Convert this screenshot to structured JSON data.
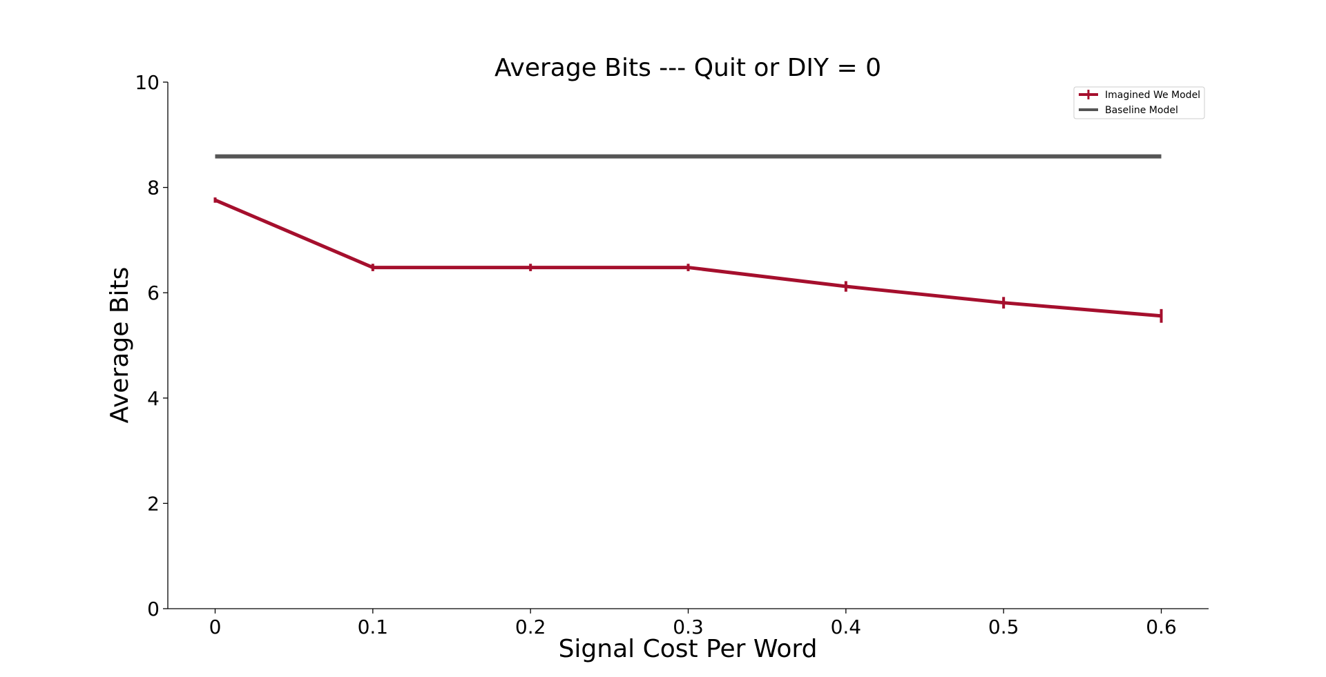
{
  "chart_data": {
    "type": "line",
    "title": "Average Bits --- Quit or DIY = 0",
    "xlabel": "Signal Cost Per Word",
    "ylabel": "Average Bits",
    "x": [
      0,
      0.1,
      0.2,
      0.3,
      0.4,
      0.5,
      0.6
    ],
    "x_tick_labels": [
      "0",
      "0.1",
      "0.2",
      "0.3",
      "0.4",
      "0.5",
      "0.6"
    ],
    "y_ticks": [
      0,
      2,
      4,
      6,
      8,
      10
    ],
    "y_tick_labels": [
      "0",
      "2",
      "4",
      "6",
      "8",
      "10"
    ],
    "xlim": [
      -0.03,
      0.63
    ],
    "ylim": [
      0,
      10
    ],
    "grid": false,
    "legend_position": "top-right",
    "series": [
      {
        "name": "Imagined We Model",
        "color": "#a50f2d",
        "values": [
          7.76,
          6.48,
          6.48,
          6.48,
          6.12,
          5.81,
          5.56
        ],
        "errors": [
          0.05,
          0.07,
          0.07,
          0.07,
          0.1,
          0.11,
          0.13
        ]
      },
      {
        "name": "Baseline Model",
        "color": "#555555",
        "values": [
          8.59,
          8.59,
          8.59,
          8.59,
          8.59,
          8.59,
          8.59
        ]
      }
    ]
  }
}
